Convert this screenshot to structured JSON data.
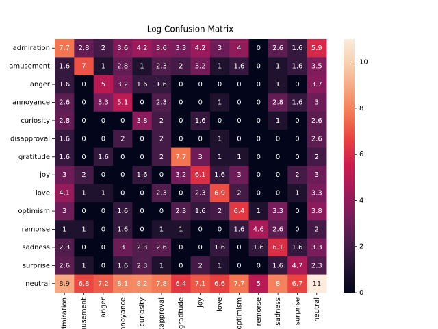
{
  "chart_data": {
    "type": "heatmap",
    "title": "Log Confusion Matrix",
    "categories": [
      "admiration",
      "amusement",
      "anger",
      "annoyance",
      "curiosity",
      "disapproval",
      "gratitude",
      "joy",
      "love",
      "optimism",
      "remorse",
      "sadness",
      "surprise",
      "neutral"
    ],
    "z": [
      [
        7.7,
        2.8,
        2,
        3.6,
        4.2,
        3.6,
        3.3,
        4.2,
        3,
        4,
        0,
        2.6,
        1.6,
        5.9
      ],
      [
        1.6,
        7,
        1,
        2.8,
        1,
        2.3,
        2,
        3.2,
        1,
        1.6,
        0,
        1,
        1.6,
        3.5
      ],
      [
        1.6,
        0,
        5,
        3.2,
        1.6,
        1.6,
        0,
        0,
        0,
        0,
        0,
        1,
        0,
        3.7
      ],
      [
        2.6,
        0,
        3.3,
        5.1,
        0,
        2.3,
        0,
        0,
        1,
        0,
        0,
        2.8,
        1.6,
        3
      ],
      [
        2.8,
        0,
        0,
        0,
        3.8,
        2,
        0,
        1.6,
        0,
        0,
        0,
        1,
        0,
        2.6
      ],
      [
        1.6,
        0,
        0,
        2,
        0,
        2,
        0,
        0,
        1,
        0,
        0,
        0,
        0,
        2.6
      ],
      [
        1.6,
        0,
        1.6,
        0,
        0,
        2,
        7.7,
        3,
        1,
        1,
        0,
        0,
        0,
        2
      ],
      [
        3,
        2,
        0,
        0,
        1.6,
        0,
        3.2,
        6.1,
        1.6,
        3,
        0,
        0,
        2,
        3
      ],
      [
        4.1,
        1,
        1,
        0,
        0,
        2.3,
        0,
        2.3,
        6.9,
        2,
        0,
        0,
        1,
        3.3
      ],
      [
        3,
        0,
        0,
        1.6,
        0,
        0,
        2.3,
        1.6,
        2,
        6.4,
        1,
        3.3,
        0,
        3.8
      ],
      [
        1,
        1,
        0,
        1.6,
        0,
        1,
        1,
        0,
        0,
        1.6,
        4.6,
        2.6,
        0,
        2
      ],
      [
        2.3,
        0,
        0,
        3,
        2.3,
        2.6,
        0,
        0,
        1.6,
        0,
        1.6,
        6.1,
        1.6,
        3.3
      ],
      [
        2.6,
        1,
        0,
        1.6,
        2.3,
        1,
        0,
        2,
        1,
        0,
        0,
        1.6,
        4.7,
        2.3
      ],
      [
        8.9,
        6.8,
        7.2,
        8.1,
        8.2,
        7.8,
        6.4,
        7.1,
        6.6,
        7.7,
        5,
        8,
        6.7,
        11
      ]
    ],
    "clim": [
      0,
      11
    ],
    "cticks": [
      0,
      2,
      4,
      6,
      8,
      10
    ],
    "colormap": "rocket"
  }
}
